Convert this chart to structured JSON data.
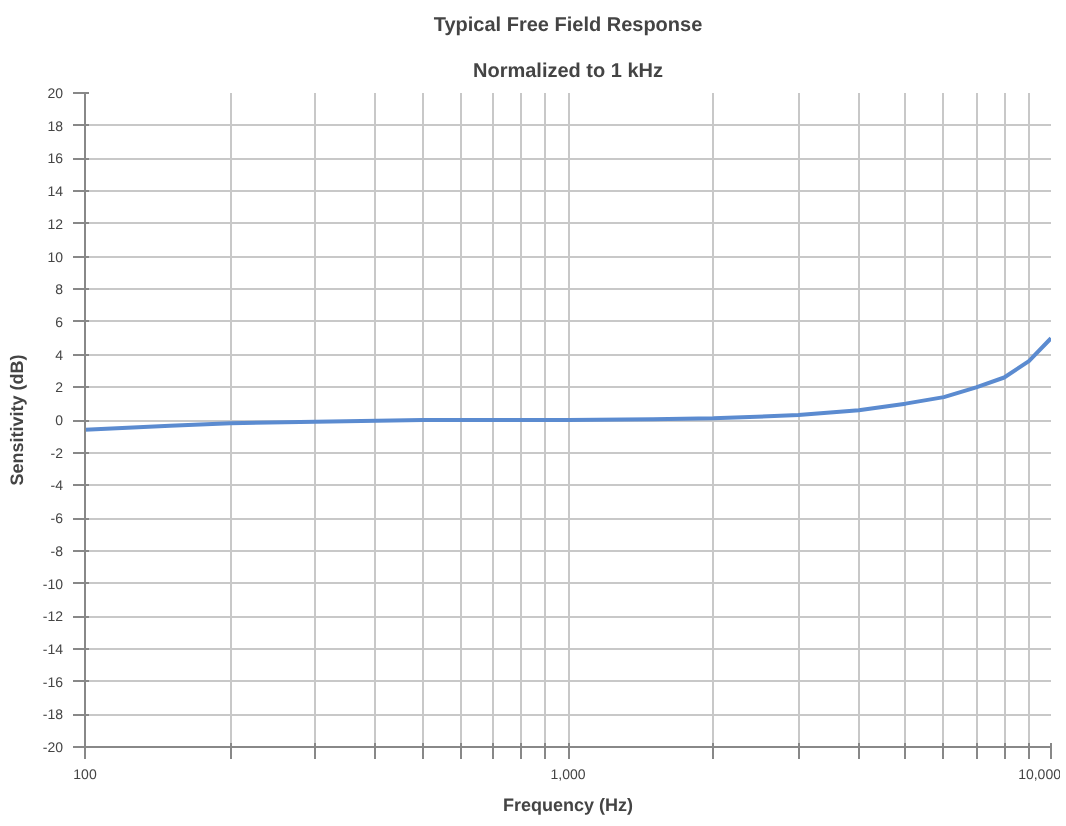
{
  "chart_data": {
    "type": "line",
    "title": "Typical Free Field Response",
    "subtitle": "Normalized to 1 kHz",
    "xlabel": "Frequency (Hz)",
    "ylabel": "Sensitivity (dB)",
    "log": "x",
    "grid": true,
    "marker": "none",
    "line_style": "solid",
    "x": [
      100,
      150,
      200,
      300,
      500,
      700,
      1000,
      1500,
      2000,
      3000,
      4000,
      5000,
      6000,
      7000,
      8000,
      9000,
      10000
    ],
    "series": [
      {
        "color": "#5b8bd0",
        "values": [
          -0.6,
          -0.35,
          -0.2,
          -0.1,
          0,
          0,
          0,
          0.05,
          0.1,
          0.3,
          0.6,
          1.0,
          1.4,
          2.0,
          2.6,
          3.6,
          5.0
        ]
      }
    ],
    "xlim": [
      100,
      10000
    ],
    "ylim": [
      -20,
      20
    ],
    "xticks": [
      100,
      {
        "value": 200,
        "label": null
      },
      {
        "value": 300,
        "label": null
      },
      {
        "value": 400,
        "label": null
      },
      {
        "value": 500,
        "label": null
      },
      {
        "value": 600,
        "label": null
      },
      {
        "value": 700,
        "label": null
      },
      {
        "value": 800,
        "label": null
      },
      {
        "value": 900,
        "label": null
      },
      {
        "value": 1000,
        "label": "1,000"
      },
      {
        "value": 2000,
        "label": null
      },
      {
        "value": 3000,
        "label": null
      },
      {
        "value": 4000,
        "label": null
      },
      {
        "value": 5000,
        "label": null
      },
      {
        "value": 6000,
        "label": null
      },
      {
        "value": 7000,
        "label": null
      },
      {
        "value": 8000,
        "label": null
      },
      {
        "value": 9000,
        "label": null
      },
      {
        "value": 10000,
        "label": "10,000"
      }
    ],
    "yticks": [
      -20,
      -18,
      -16,
      -14,
      -12,
      -10,
      -8,
      -6,
      -4,
      -2,
      0,
      2,
      4,
      6,
      8,
      10,
      12,
      14,
      16,
      18,
      20
    ]
  }
}
